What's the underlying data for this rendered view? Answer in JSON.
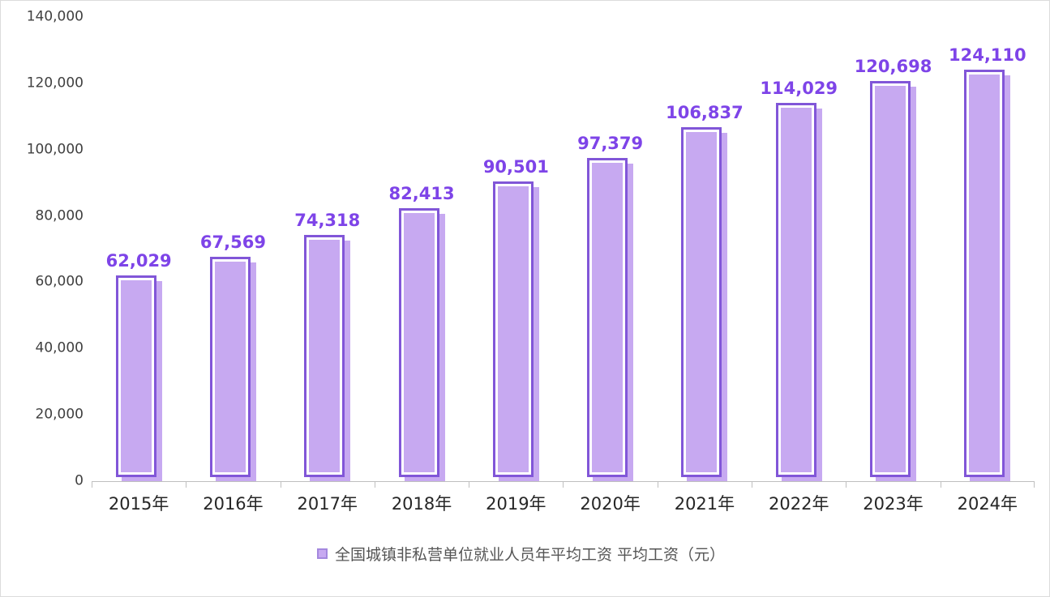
{
  "chart_data": {
    "type": "bar",
    "title": "",
    "categories": [
      "2015年",
      "2016年",
      "2017年",
      "2018年",
      "2019年",
      "2020年",
      "2021年",
      "2022年",
      "2023年",
      "2024年"
    ],
    "values": [
      62029,
      67569,
      74318,
      82413,
      90501,
      97379,
      106837,
      114029,
      120698,
      124110
    ],
    "value_labels": [
      "62,029",
      "67,569",
      "74,318",
      "82,413",
      "90,501",
      "97,379",
      "106,837",
      "114,029",
      "120,698",
      "124,110"
    ],
    "xlabel": "",
    "ylabel": "",
    "ylim": [
      0,
      140000
    ],
    "yticks": [
      {
        "value": 0,
        "label": "0"
      },
      {
        "value": 20000,
        "label": "20,000"
      },
      {
        "value": 40000,
        "label": "40,000"
      },
      {
        "value": 60000,
        "label": "60,000"
      },
      {
        "value": 80000,
        "label": "80,000"
      },
      {
        "value": 100000,
        "label": "100,000"
      },
      {
        "value": 120000,
        "label": "120,000"
      },
      {
        "value": 140000,
        "label": "140,000"
      }
    ],
    "grid": false,
    "legend_position": "bottom",
    "series_name": "全国城镇非私营单位就业人员年平均工资 平均工资（元）"
  },
  "legend": {
    "label": "全国城镇非私营单位就业人员年平均工资 平均工资（元）"
  },
  "colors": {
    "bar_fill": "#c7a9f1",
    "bar_border": "#8156d8",
    "value_label": "#7e44e8",
    "axis_line": "#bfbfbf"
  }
}
